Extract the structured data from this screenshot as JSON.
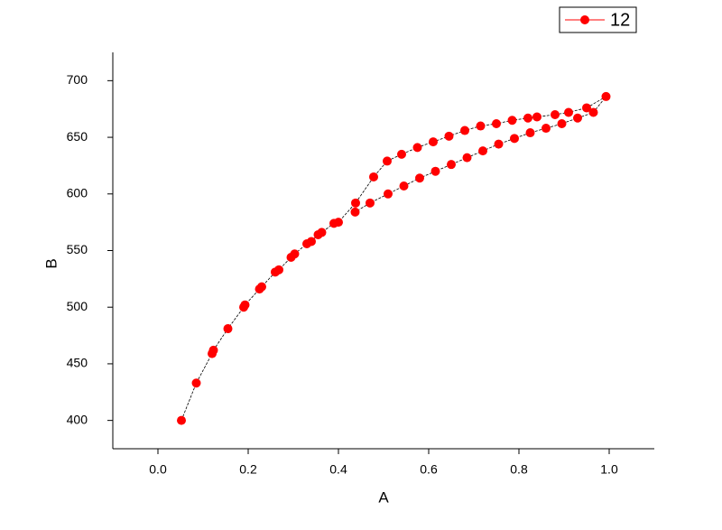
{
  "chart_data": {
    "type": "line",
    "x_label": "A",
    "y_label": "B",
    "xlim": [
      -0.1,
      1.1
    ],
    "ylim": [
      375,
      725
    ],
    "xticks": [
      {
        "value": 0,
        "label": "0.0"
      },
      0.2,
      0.4,
      0.6,
      0.8,
      {
        "value": 1,
        "label": "1.0"
      }
    ],
    "yticks": [
      400,
      450,
      500,
      550,
      600,
      650,
      700
    ],
    "grid": false,
    "legend": "top-right",
    "series": [
      {
        "name": "12",
        "color": "#ff0000",
        "line_color": "#000000",
        "x": [
          0.052,
          0.085,
          0.12,
          0.123,
          0.155,
          0.19,
          0.193,
          0.225,
          0.23,
          0.26,
          0.268,
          0.295,
          0.303,
          0.33,
          0.34,
          0.355,
          0.363,
          0.39,
          0.4,
          0.438,
          0.478,
          0.508,
          0.54,
          0.575,
          0.61,
          0.645,
          0.68,
          0.715,
          0.75,
          0.785,
          0.82,
          0.84,
          0.88,
          0.91,
          0.95,
          0.993,
          0.965,
          0.93,
          0.895,
          0.86,
          0.825,
          0.79,
          0.755,
          0.72,
          0.685,
          0.65,
          0.615,
          0.58,
          0.545,
          0.51,
          0.47,
          0.437
        ],
        "values": [
          400,
          433,
          459,
          462,
          481,
          500,
          502,
          516,
          518,
          531,
          533,
          544,
          547,
          556,
          558,
          564,
          566,
          574,
          575,
          592,
          615,
          629,
          635,
          641,
          646,
          651,
          656,
          660,
          662,
          665,
          667,
          668,
          670,
          672,
          676,
          686,
          672,
          667,
          662,
          658,
          654,
          649,
          644,
          638,
          632,
          626,
          620,
          614,
          607,
          600,
          592,
          584
        ]
      }
    ]
  }
}
